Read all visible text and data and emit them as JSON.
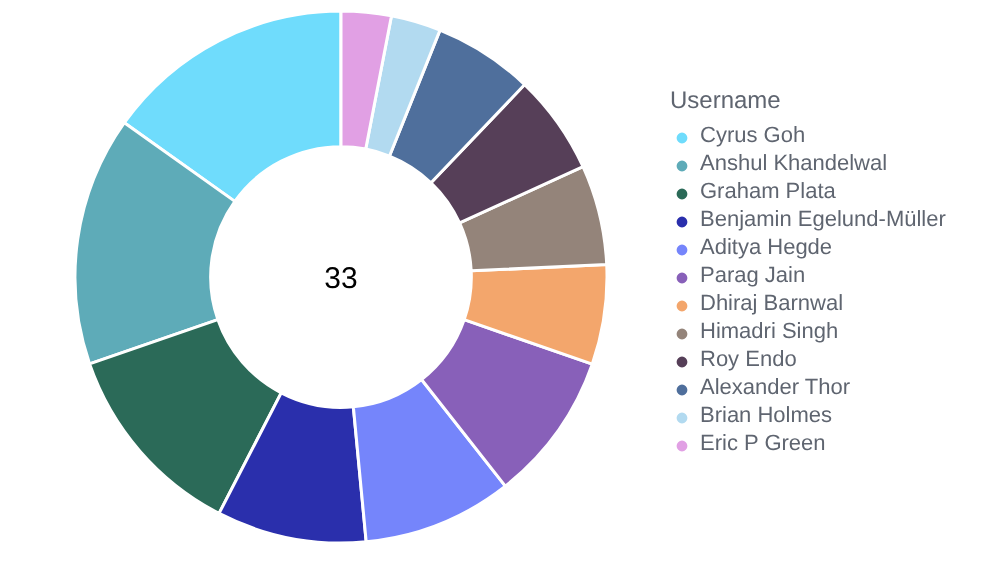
{
  "chart_data": {
    "type": "donut",
    "legend_title": "Username",
    "legend": "right",
    "categories": [
      "Cyrus Goh",
      "Anshul Khandelwal",
      "Graham Plata",
      "Benjamin Egelund-Müller",
      "Aditya Hegde",
      "Parag Jain",
      "Dhiraj Barnwal",
      "Himadri Singh",
      "Roy Endo",
      "Alexander Thor",
      "Brian Holmes",
      "Eric P Green"
    ],
    "values": [
      15.15,
      15.15,
      12.12,
      9.09,
      9.09,
      9.09,
      6.06,
      6.06,
      6.06,
      6.06,
      3.03,
      3.04
    ],
    "colors": [
      "#6fdcfc",
      "#5eabb8",
      "#2b6a58",
      "#2a2fac",
      "#7585fb",
      "#8860b9",
      "#f3a66c",
      "#94847a",
      "#563f58",
      "#4f6f9c",
      "#b2daf0",
      "#e1a0e4"
    ],
    "annotations": [
      "33"
    ]
  }
}
